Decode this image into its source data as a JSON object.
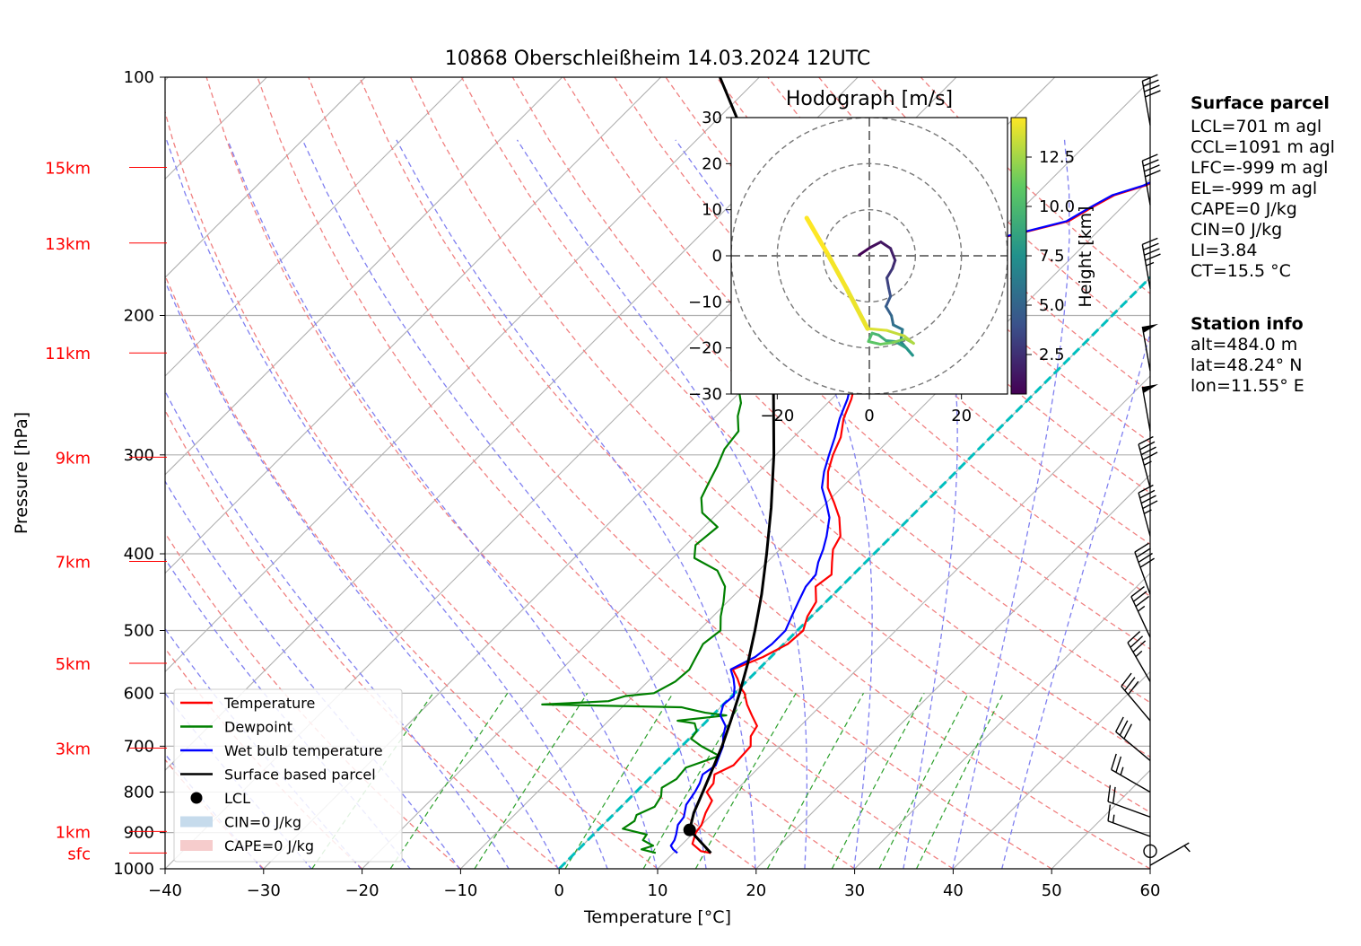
{
  "title": "10868 Oberschleißheim 14.03.2024 12UTC",
  "colors": {
    "temperature": "#ff0000",
    "dewpoint": "#008000",
    "wetbulb": "#0000ff",
    "parcel": "#000000",
    "isotherm_zero": "#00bfbf",
    "dry_adiabat": "#f08080",
    "moist_adiabat": "#8080f0",
    "mixing_ratio": "#2ca02c",
    "height_label": "#ff0000"
  },
  "chart_data": {
    "type": "line",
    "subtype": "skew-T log-p",
    "xlabel": "Temperature [°C]",
    "ylabel": "Pressure [hPa]",
    "xlim": [
      -40,
      60
    ],
    "ylim_hpa": [
      1000,
      100
    ],
    "x_ticks": [
      "−40",
      "−30",
      "−20",
      "−10",
      "0",
      "10",
      "20",
      "30",
      "40",
      "50",
      "60"
    ],
    "x_tick_values": [
      -40,
      -30,
      -20,
      -10,
      0,
      10,
      20,
      30,
      40,
      50,
      60
    ],
    "y_ticks": [
      "100",
      "200",
      "300",
      "400",
      "500",
      "600",
      "700",
      "800",
      "900",
      "1000"
    ],
    "y_tick_values": [
      100,
      200,
      300,
      400,
      500,
      600,
      700,
      800,
      900,
      1000
    ],
    "height_labels": [
      {
        "label": "15km",
        "p": 130
      },
      {
        "label": "13km",
        "p": 162
      },
      {
        "label": "11km",
        "p": 223
      },
      {
        "label": "9km",
        "p": 302
      },
      {
        "label": "7km",
        "p": 409
      },
      {
        "label": "5km",
        "p": 550
      },
      {
        "label": "3km",
        "p": 704
      },
      {
        "label": "1km",
        "p": 897
      },
      {
        "label": "sfc",
        "p": 955
      }
    ],
    "legend": [
      {
        "label": "Temperature",
        "kind": "line",
        "color": "#ff0000"
      },
      {
        "label": "Dewpoint",
        "kind": "line",
        "color": "#008000"
      },
      {
        "label": "Wet bulb temperature",
        "kind": "line",
        "color": "#0000ff"
      },
      {
        "label": "Surface based parcel",
        "kind": "line",
        "color": "#000000"
      },
      {
        "label": "LCL",
        "kind": "dot",
        "color": "#000000"
      },
      {
        "label": "CIN=0 J/kg",
        "kind": "patch",
        "color": "#c6dbec"
      },
      {
        "label": "CAPE=0 J/kg",
        "kind": "patch",
        "color": "#f6cccc"
      }
    ],
    "legend_position": "lower-left",
    "series": [
      {
        "name": "Temperature",
        "points": [
          [
            13.8,
            955
          ],
          [
            12.6,
            950
          ],
          [
            11.0,
            930
          ],
          [
            10.2,
            900
          ],
          [
            10.0,
            880
          ],
          [
            9.2,
            850
          ],
          [
            8.6,
            820
          ],
          [
            7.2,
            800
          ],
          [
            7.0,
            780
          ],
          [
            6.2,
            760
          ],
          [
            7.2,
            740
          ],
          [
            7.0,
            700
          ],
          [
            6.0,
            680
          ],
          [
            5.6,
            660
          ],
          [
            4.0,
            640
          ],
          [
            2.4,
            620
          ],
          [
            1.0,
            600
          ],
          [
            0.0,
            590
          ],
          [
            -1.2,
            575
          ],
          [
            -2.6,
            560
          ],
          [
            -0.8,
            540
          ],
          [
            0.4,
            520
          ],
          [
            0.6,
            500
          ],
          [
            -0.4,
            480
          ],
          [
            -1.0,
            460
          ],
          [
            -2.6,
            440
          ],
          [
            -2.2,
            425
          ],
          [
            -3.4,
            410
          ],
          [
            -4.6,
            395
          ],
          [
            -5.2,
            380
          ],
          [
            -7.2,
            360
          ],
          [
            -9.2,
            345
          ],
          [
            -11.4,
            330
          ],
          [
            -13.0,
            315
          ],
          [
            -14.2,
            300
          ],
          [
            -15.2,
            285
          ],
          [
            -16.8,
            270
          ],
          [
            -18.0,
            255
          ],
          [
            -19.4,
            242
          ],
          [
            -20.6,
            230
          ],
          [
            -21.2,
            220
          ],
          [
            -21.8,
            210
          ],
          [
            -22.2,
            200
          ],
          [
            -22.4,
            192
          ],
          [
            -22.2,
            185
          ],
          [
            -22.8,
            178
          ],
          [
            -23.2,
            171
          ],
          [
            -21.4,
            166
          ],
          [
            -21.0,
            162
          ],
          [
            -18.0,
            158
          ],
          [
            -14.0,
            152
          ],
          [
            -13.0,
            146
          ],
          [
            -12.0,
            141
          ],
          [
            -9.8,
            137
          ],
          [
            -8.6,
            133
          ],
          [
            -6.8,
            129
          ],
          [
            -5.4,
            127
          ]
        ]
      },
      {
        "name": "Dewpoint",
        "points": [
          [
            8.2,
            955
          ],
          [
            6.4,
            945
          ],
          [
            7.2,
            935
          ],
          [
            5.6,
            920
          ],
          [
            5.4,
            905
          ],
          [
            2.4,
            890
          ],
          [
            2.8,
            870
          ],
          [
            2.4,
            855
          ],
          [
            3.4,
            835
          ],
          [
            3.0,
            810
          ],
          [
            2.2,
            790
          ],
          [
            2.8,
            770
          ],
          [
            2.6,
            745
          ],
          [
            4.8,
            720
          ],
          [
            2.0,
            700
          ],
          [
            0.2,
            685
          ],
          [
            0.0,
            670
          ],
          [
            -1.0,
            655
          ],
          [
            -3.0,
            650
          ],
          [
            1.4,
            640
          ],
          [
            -1.0,
            635
          ],
          [
            -4.0,
            625
          ],
          [
            -18.4,
            620
          ],
          [
            -12.0,
            614
          ],
          [
            -10.8,
            605
          ],
          [
            -8.2,
            600
          ],
          [
            -7.2,
            580
          ],
          [
            -7.0,
            560
          ],
          [
            -7.6,
            540
          ],
          [
            -8.2,
            520
          ],
          [
            -7.8,
            500
          ],
          [
            -9.2,
            480
          ],
          [
            -10.4,
            460
          ],
          [
            -11.8,
            440
          ],
          [
            -14.2,
            420
          ],
          [
            -17.8,
            405
          ],
          [
            -19.0,
            390
          ],
          [
            -18.6,
            370
          ],
          [
            -21.6,
            355
          ],
          [
            -23.2,
            340
          ],
          [
            -24.0,
            325
          ],
          [
            -24.8,
            310
          ],
          [
            -25.8,
            295
          ],
          [
            -26.2,
            280
          ],
          [
            -27.8,
            268
          ],
          [
            -28.8,
            258
          ],
          [
            -30.4,
            248
          ],
          [
            -31.6,
            238
          ],
          [
            -33.0,
            230
          ],
          [
            -34.4,
            222
          ],
          [
            -34.2,
            214
          ],
          [
            -35.4,
            205
          ],
          [
            -35.4,
            198
          ],
          [
            -36.0,
            190
          ],
          [
            -36.2,
            182
          ],
          [
            -36.0,
            175
          ],
          [
            -37.2,
            170
          ],
          [
            -40.4,
            165
          ],
          [
            -40.8,
            160
          ],
          [
            -41.0,
            155
          ],
          [
            -40.6,
            150
          ],
          [
            -40.4,
            145
          ],
          [
            -39.6,
            140
          ],
          [
            -39.2,
            135
          ],
          [
            -39.2,
            131
          ]
        ]
      },
      {
        "name": "Wet bulb temperature",
        "points": [
          [
            10.4,
            955
          ],
          [
            9.6,
            945
          ],
          [
            9.0,
            935
          ],
          [
            8.8,
            920
          ],
          [
            8.4,
            905
          ],
          [
            7.6,
            880
          ],
          [
            7.4,
            860
          ],
          [
            6.4,
            830
          ],
          [
            6.0,
            800
          ],
          [
            5.6,
            780
          ],
          [
            5.0,
            760
          ],
          [
            5.4,
            740
          ],
          [
            4.8,
            720
          ],
          [
            4.2,
            700
          ],
          [
            3.2,
            680
          ],
          [
            2.4,
            660
          ],
          [
            0.8,
            640
          ],
          [
            0.0,
            620
          ],
          [
            0.2,
            605
          ],
          [
            -0.6,
            590
          ],
          [
            -1.6,
            575
          ],
          [
            -2.8,
            560
          ],
          [
            -1.6,
            540
          ],
          [
            -1.2,
            520
          ],
          [
            -1.2,
            500
          ],
          [
            -2.0,
            480
          ],
          [
            -2.8,
            460
          ],
          [
            -3.6,
            440
          ],
          [
            -3.8,
            425
          ],
          [
            -4.8,
            410
          ],
          [
            -5.6,
            395
          ],
          [
            -6.6,
            380
          ],
          [
            -8.2,
            360
          ],
          [
            -10.0,
            345
          ],
          [
            -12.0,
            330
          ],
          [
            -13.4,
            315
          ],
          [
            -14.6,
            300
          ],
          [
            -15.8,
            285
          ],
          [
            -17.2,
            270
          ],
          [
            -18.4,
            255
          ],
          [
            -19.8,
            242
          ],
          [
            -20.8,
            230
          ],
          [
            -21.4,
            220
          ],
          [
            -22.0,
            210
          ],
          [
            -22.4,
            200
          ],
          [
            -22.6,
            192
          ],
          [
            -22.4,
            185
          ],
          [
            -23.0,
            178
          ],
          [
            -23.4,
            171
          ],
          [
            -21.6,
            166
          ],
          [
            -21.2,
            162
          ],
          [
            -18.2,
            158
          ],
          [
            -14.2,
            152
          ],
          [
            -13.2,
            146
          ],
          [
            -12.2,
            141
          ],
          [
            -10.0,
            137
          ],
          [
            -8.8,
            133
          ],
          [
            -6.8,
            129
          ],
          [
            -5.8,
            127
          ]
        ]
      },
      {
        "name": "Surface based parcel",
        "points": [
          [
            13.8,
            955
          ],
          [
            9.3,
            893
          ],
          [
            8.0,
            850
          ],
          [
            6.8,
            800
          ],
          [
            5.5,
            750
          ],
          [
            4.1,
            700
          ],
          [
            2.4,
            650
          ],
          [
            0.5,
            600
          ],
          [
            -1.7,
            550
          ],
          [
            -4.3,
            500
          ],
          [
            -7.3,
            450
          ],
          [
            -10.9,
            400
          ],
          [
            -15.1,
            350
          ],
          [
            -20.2,
            300
          ],
          [
            -26.6,
            250
          ],
          [
            -35.0,
            200
          ],
          [
            -46.0,
            150
          ],
          [
            -55.0,
            120
          ],
          [
            -64.0,
            100
          ]
        ]
      }
    ],
    "lcl": {
      "t": 9.3,
      "p": 893
    },
    "wind_barbs": [
      {
        "p": 990,
        "speed_kt": 5,
        "dir_deg": 60
      },
      {
        "p": 950,
        "speed_kt": 0,
        "dir_deg": 0
      },
      {
        "p": 910,
        "speed_kt": 15,
        "dir_deg": 290
      },
      {
        "p": 860,
        "speed_kt": 20,
        "dir_deg": 290
      },
      {
        "p": 800,
        "speed_kt": 25,
        "dir_deg": 300
      },
      {
        "p": 730,
        "speed_kt": 30,
        "dir_deg": 310
      },
      {
        "p": 650,
        "speed_kt": 30,
        "dir_deg": 320
      },
      {
        "p": 580,
        "speed_kt": 35,
        "dir_deg": 330
      },
      {
        "p": 510,
        "speed_kt": 35,
        "dir_deg": 335
      },
      {
        "p": 450,
        "speed_kt": 40,
        "dir_deg": 340
      },
      {
        "p": 380,
        "speed_kt": 45,
        "dir_deg": 345
      },
      {
        "p": 330,
        "speed_kt": 45,
        "dir_deg": 345
      },
      {
        "p": 280,
        "speed_kt": 50,
        "dir_deg": 350
      },
      {
        "p": 235,
        "speed_kt": 50,
        "dir_deg": 350
      },
      {
        "p": 185,
        "speed_kt": 45,
        "dir_deg": 350
      },
      {
        "p": 145,
        "speed_kt": 40,
        "dir_deg": 350
      },
      {
        "p": 115,
        "speed_kt": 40,
        "dir_deg": 350
      }
    ],
    "hodograph": {
      "title": "Hodograph [m/s]",
      "xlim": [
        -30,
        30
      ],
      "ylim": [
        -30,
        30
      ],
      "x_ticks": [
        "−20",
        "0",
        "20"
      ],
      "x_tick_values": [
        -20,
        0,
        20
      ],
      "y_ticks": [
        "30",
        "20",
        "10",
        "0",
        "−10",
        "−20",
        "−30"
      ],
      "y_tick_values": [
        30,
        20,
        10,
        0,
        -10,
        -20,
        -30
      ],
      "rings": [
        10,
        20,
        30
      ],
      "colorbar_label": "Height [km]",
      "colorbar_ticks": [
        "2.5",
        "5.0",
        "7.5",
        "10.0",
        "12.5"
      ],
      "colorbar_tick_values": [
        2.5,
        5.0,
        7.5,
        10.0,
        12.5
      ],
      "colorbar_range": [
        0.5,
        14.5
      ],
      "trace": [
        [
          -2.2,
          0.2,
          0.5
        ],
        [
          0.2,
          1.8,
          0.8
        ],
        [
          2.5,
          3.0,
          1.2
        ],
        [
          4.6,
          1.6,
          1.6
        ],
        [
          5.6,
          -1.0,
          2.0
        ],
        [
          5.0,
          -2.8,
          2.5
        ],
        [
          3.8,
          -4.8,
          3.0
        ],
        [
          4.2,
          -7.0,
          3.5
        ],
        [
          4.6,
          -8.8,
          4.0
        ],
        [
          3.6,
          -11.0,
          4.5
        ],
        [
          4.8,
          -13.0,
          5.0
        ],
        [
          5.2,
          -15.0,
          5.5
        ],
        [
          7.2,
          -16.0,
          6.0
        ],
        [
          6.8,
          -18.6,
          6.5
        ],
        [
          8.2,
          -20.2,
          7.0
        ],
        [
          9.4,
          -21.6,
          7.5
        ],
        [
          8.0,
          -20.0,
          8.0
        ],
        [
          5.6,
          -18.6,
          8.5
        ],
        [
          3.6,
          -18.4,
          9.0
        ],
        [
          2.0,
          -17.2,
          9.5
        ],
        [
          0.6,
          -16.8,
          10.0
        ],
        [
          -0.2,
          -18.6,
          10.5
        ],
        [
          2.4,
          -19.2,
          11.0
        ],
        [
          5.2,
          -18.8,
          11.5
        ],
        [
          7.8,
          -18.0,
          12.0
        ],
        [
          9.6,
          -19.0,
          12.5
        ],
        [
          7.6,
          -17.4,
          13.0
        ],
        [
          3.8,
          -16.2,
          13.5
        ],
        [
          -0.4,
          -15.8,
          14.0
        ],
        [
          -5.0,
          -7.0,
          14.2
        ],
        [
          -9.4,
          1.0,
          14.4
        ],
        [
          -13.6,
          8.2,
          14.6
        ]
      ]
    }
  },
  "surface_parcel": {
    "heading": "Surface parcel",
    "lines": [
      "LCL=701 m agl",
      "CCL=1091 m agl",
      "LFC=-999 m agl",
      "EL=-999 m agl",
      "CAPE=0 J/kg",
      "CIN=0 J/kg",
      "LI=3.84",
      "CT=15.5 °C"
    ]
  },
  "station_info": {
    "heading": "Station info",
    "lines": [
      "alt=484.0 m",
      "lat=48.24° N",
      "lon=11.55° E"
    ]
  }
}
